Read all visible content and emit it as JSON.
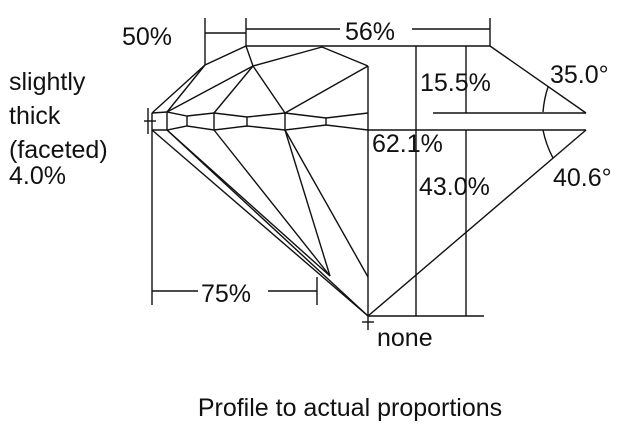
{
  "labels": {
    "lower_girdle_pct": "50%",
    "table_pct": "56%",
    "girdle_line1": "slightly",
    "girdle_line2": "thick",
    "girdle_line3": "(faceted)",
    "girdle_pct": "4.0%",
    "crown_height_pct": "15.5%",
    "crown_angle": "35.0°",
    "total_depth_pct": "62.1%",
    "pavilion_depth_pct": "43.0%",
    "pavilion_angle": "40.6°",
    "star_pct": "75%",
    "culet": "none",
    "caption": "Profile to actual proportions"
  },
  "colors": {
    "line": "#111111",
    "background": "#ffffff"
  }
}
